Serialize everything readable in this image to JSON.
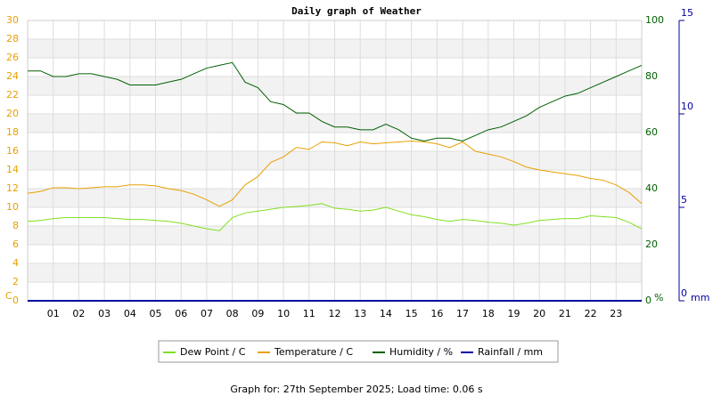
{
  "chart_data": {
    "type": "line",
    "title": "Daily graph of Weather",
    "footer": "Graph for: 27th September 2025; Load time: 0.06 s",
    "y_label": "C",
    "y2_label": "%",
    "y3_label": "mm",
    "x": [
      0,
      0.5,
      1,
      1.5,
      2,
      2.5,
      3,
      3.5,
      4,
      4.5,
      5,
      5.5,
      6,
      6.5,
      7,
      7.5,
      8,
      8.5,
      9,
      9.5,
      10,
      10.5,
      11,
      11.5,
      12,
      12.5,
      13,
      13.5,
      14,
      14.5,
      15,
      15.5,
      16,
      16.5,
      17,
      17.5,
      18,
      18.5,
      19,
      19.5,
      20,
      20.5,
      21,
      21.5,
      22,
      22.5,
      23,
      23.5,
      24
    ],
    "xlim": [
      0,
      24
    ],
    "xticks": [
      {
        "value": 1,
        "label": "01"
      },
      {
        "value": 2,
        "label": "02"
      },
      {
        "value": 3,
        "label": "03"
      },
      {
        "value": 4,
        "label": "04"
      },
      {
        "value": 5,
        "label": "05"
      },
      {
        "value": 6,
        "label": "06"
      },
      {
        "value": 7,
        "label": "07"
      },
      {
        "value": 8,
        "label": "08"
      },
      {
        "value": 9,
        "label": "09"
      },
      10,
      11,
      12,
      13,
      14,
      15,
      16,
      17,
      18,
      19,
      20,
      21,
      22,
      23
    ],
    "ylim": [
      0,
      30
    ],
    "yticks": [
      0,
      2,
      4,
      6,
      8,
      10,
      12,
      14,
      16,
      18,
      20,
      22,
      24,
      26,
      28,
      30
    ],
    "y2lim": [
      0,
      100
    ],
    "y2ticks": [
      0,
      20,
      40,
      60,
      80,
      100
    ],
    "y3lim": [
      0,
      15
    ],
    "y3ticks": [
      0,
      5,
      10,
      15
    ],
    "grid": true,
    "series": [
      {
        "name": "Dew Point / C",
        "color": "#80e020",
        "values": [
          8.5,
          8.6,
          8.8,
          8.9,
          8.9,
          8.9,
          8.9,
          8.8,
          8.7,
          8.7,
          8.6,
          8.5,
          8.3,
          8.0,
          7.7,
          7.5,
          8.9,
          9.4,
          9.6,
          9.8,
          10.0,
          10.1,
          10.2,
          10.4,
          9.9,
          9.8,
          9.6,
          9.7,
          10.0,
          9.6,
          9.2,
          9.0,
          8.7,
          8.5,
          8.7,
          8.6,
          8.4,
          8.3,
          8.1,
          8.3,
          8.6,
          8.7,
          8.8,
          8.8,
          9.1,
          9.0,
          8.9,
          8.4,
          7.7
        ]
      },
      {
        "name": "Temperature / C",
        "color": "#e8a000",
        "values": [
          11.5,
          11.7,
          12.1,
          12.1,
          12.0,
          12.1,
          12.2,
          12.2,
          12.4,
          12.4,
          12.3,
          12.0,
          11.8,
          11.4,
          10.8,
          10.1,
          10.8,
          12.4,
          13.3,
          14.8,
          15.4,
          16.4,
          16.2,
          17.0,
          16.9,
          16.6,
          17.0,
          16.8,
          16.9,
          17.0,
          17.1,
          17.0,
          16.8,
          16.4,
          17.0,
          16.0,
          15.7,
          15.4,
          14.9,
          14.3,
          14.0,
          13.8,
          13.6,
          13.4,
          13.1,
          12.9,
          12.4,
          11.6,
          10.4
        ]
      },
      {
        "name": "Humidity / %",
        "color": "#006000",
        "axis": "y2",
        "values": [
          82,
          82,
          80,
          80,
          81,
          81,
          80,
          79,
          77,
          77,
          77,
          78,
          79,
          81,
          83,
          84,
          85,
          78,
          76,
          71,
          70,
          67,
          67,
          64,
          62,
          62,
          61,
          61,
          63,
          61,
          58,
          57,
          58,
          58,
          57,
          59,
          61,
          62,
          64,
          66,
          69,
          71,
          73,
          74,
          76,
          78,
          80,
          82,
          84
        ]
      },
      {
        "name": "Rainfall / mm",
        "color": "#0000a0",
        "axis": "y3",
        "values": [
          0,
          0,
          0,
          0,
          0,
          0,
          0,
          0,
          0,
          0,
          0,
          0,
          0,
          0,
          0,
          0,
          0,
          0,
          0,
          0,
          0,
          0,
          0,
          0,
          0,
          0,
          0,
          0,
          0,
          0,
          0,
          0,
          0,
          0,
          0,
          0,
          0,
          0,
          0,
          0,
          0,
          0,
          0,
          0,
          0,
          0,
          0,
          0,
          0
        ]
      }
    ]
  }
}
